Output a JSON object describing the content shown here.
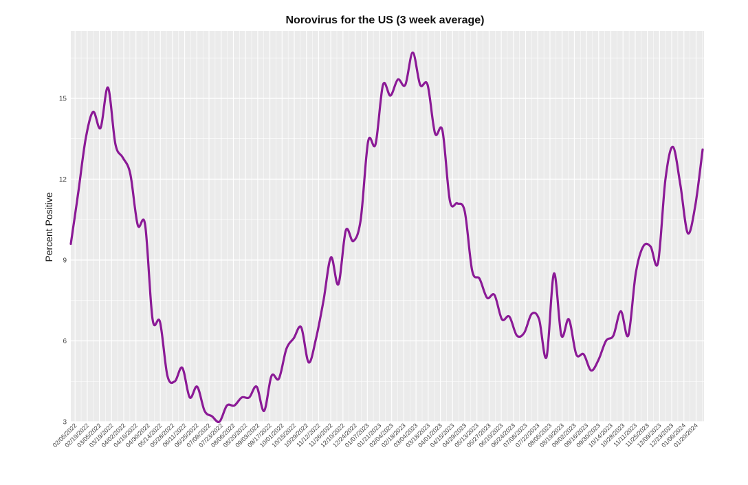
{
  "chart_data": {
    "type": "line",
    "title": "Norovirus for the US (3 week average)",
    "xlabel": "",
    "ylabel": "Percent Positive",
    "ylim": [
      3,
      17.5
    ],
    "yticks": [
      3,
      6,
      9,
      12,
      15
    ],
    "grid": true,
    "background": "#ebebeb",
    "line_color": "#8b1a96",
    "x_ticks": [
      "02/05/2022",
      "02/19/2022",
      "03/05/2022",
      "03/19/2022",
      "04/02/2022",
      "04/16/2022",
      "04/30/2022",
      "05/14/2022",
      "05/28/2022",
      "06/11/2022",
      "06/25/2022",
      "07/09/2022",
      "07/23/2022",
      "08/06/2022",
      "08/20/2022",
      "09/03/2022",
      "09/17/2022",
      "10/01/2022",
      "10/15/2022",
      "10/29/2022",
      "11/12/2022",
      "11/26/2022",
      "12/10/2022",
      "12/24/2022",
      "01/07/2023",
      "01/21/2023",
      "02/04/2023",
      "02/18/2023",
      "03/04/2023",
      "03/18/2023",
      "04/01/2023",
      "04/15/2023",
      "04/29/2023",
      "05/13/2023",
      "05/27/2023",
      "06/10/2023",
      "06/24/2023",
      "07/08/2023",
      "07/22/2023",
      "08/05/2023",
      "08/19/2023",
      "09/02/2023",
      "09/16/2023",
      "09/30/2023",
      "10/14/2023",
      "10/28/2023",
      "11/11/2023",
      "11/25/2023",
      "12/09/2023",
      "12/23/2023",
      "01/06/2024",
      "01/20/2024"
    ],
    "series": [
      {
        "values": [
          9.6,
          11.5,
          13.5,
          14.5,
          13.9,
          15.4,
          13.3,
          12.8,
          12.2,
          10.3,
          10.3,
          6.8,
          6.7,
          4.7,
          4.5,
          5.0,
          3.9,
          4.3,
          3.4,
          3.2,
          3.0,
          3.6,
          3.6,
          3.9,
          3.9,
          4.3,
          3.4,
          4.7,
          4.6,
          5.7,
          6.1,
          6.5,
          5.2,
          6.1,
          7.5,
          9.1,
          8.1,
          10.1,
          9.7,
          10.5,
          13.4,
          13.3,
          15.5,
          15.1,
          15.7,
          15.5,
          16.7,
          15.5,
          15.5,
          13.7,
          13.8,
          11.2,
          11.1,
          10.8,
          8.6,
          8.3,
          7.6,
          7.7,
          6.8,
          6.9,
          6.2,
          6.3,
          7.0,
          6.8,
          5.4,
          8.5,
          6.2,
          6.8,
          5.5,
          5.5,
          4.9,
          5.3,
          6.0,
          6.2,
          7.1,
          6.2,
          8.5,
          9.5,
          9.5,
          8.9,
          12.0,
          13.2,
          11.8,
          10.0,
          11.0,
          13.1
        ]
      }
    ]
  }
}
